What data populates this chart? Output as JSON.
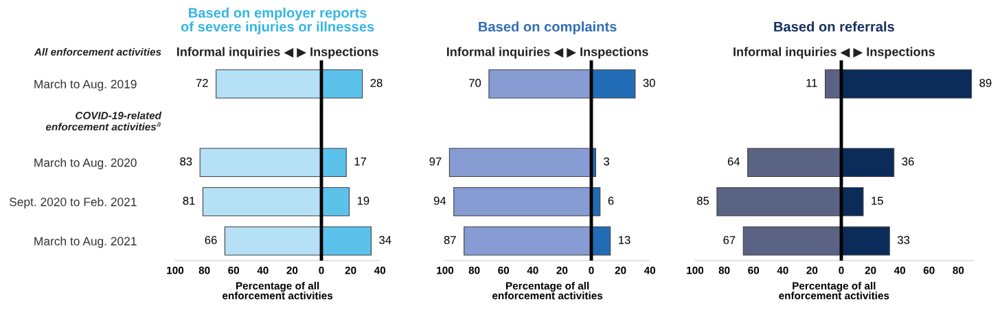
{
  "chart_data": [
    {
      "type": "bar",
      "orientation": "horizontal",
      "title": "Based on employer reports\nof severe injuries or illnesses",
      "subtitle": "Informal inquiries ◀ ▶ Inspections",
      "xlabel": "Percentage of all\nenforcement activities",
      "categories": [
        "March to Aug. 2019",
        null,
        "March to Aug. 2020",
        "Sept. 2020 to Feb. 2021",
        "March to Aug. 2021"
      ],
      "annotations": [
        "All enforcement activities",
        "COVID-19-related\nenforcement activities$^{a}$"
      ],
      "series": [
        {
          "color": "#b5e0f6",
          "base": [
            -72,
            null,
            -83,
            -81,
            -66
          ],
          "values": [
            72,
            null,
            83,
            81,
            66
          ],
          "value_labels": [
            "72",
            null,
            "83",
            "81",
            "66"
          ]
        },
        {
          "color": "#5cc2ec",
          "values": [
            28,
            null,
            17,
            19,
            34
          ],
          "value_labels": [
            "28",
            null,
            "17",
            "19",
            "34"
          ]
        }
      ],
      "xlim": [
        -100,
        40
      ],
      "xticks": [
        {
          "value": -100,
          "label": "100"
        },
        {
          "value": -80,
          "label": "80"
        },
        {
          "value": -60,
          "label": "60"
        },
        {
          "value": -40,
          "label": "40"
        },
        {
          "value": -20,
          "label": "20"
        },
        0,
        20,
        40
      ],
      "ref_lines": [
        {
          "axis": "x",
          "value": 0,
          "color": "#000000"
        }
      ]
    },
    {
      "type": "bar",
      "orientation": "horizontal",
      "title": "Based on complaints",
      "subtitle": "Informal inquiries ◀ ▶ Inspections",
      "xlabel": "Percentage of all\nenforcement activities",
      "series": [
        {
          "color": "#879cd3",
          "base": [
            -70,
            null,
            -97,
            -94,
            -87
          ],
          "values": [
            70,
            null,
            97,
            94,
            87
          ],
          "value_labels": [
            "70",
            null,
            "97",
            "94",
            "87"
          ]
        },
        {
          "color": "#226cb6",
          "values": [
            30,
            null,
            3,
            6,
            13
          ],
          "value_labels": [
            "30",
            null,
            "3",
            "6",
            "13"
          ]
        }
      ],
      "xlim": [
        -100,
        40
      ],
      "xticks": [
        {
          "value": -100,
          "label": "100"
        },
        {
          "value": -80,
          "label": "80"
        },
        {
          "value": -60,
          "label": "60"
        },
        {
          "value": -40,
          "label": "40"
        },
        {
          "value": -20,
          "label": "20"
        },
        0,
        20,
        40
      ],
      "ref_lines": [
        {
          "axis": "x",
          "value": 0,
          "color": "#000000"
        }
      ]
    },
    {
      "type": "bar",
      "orientation": "horizontal",
      "title": "Based on referrals",
      "subtitle": "Informal inquiries ◀ ▶ Inspections",
      "xlabel": "Percentage of all\nenforcement activities",
      "series": [
        {
          "color": "#5b6384",
          "base": [
            -11,
            null,
            -64,
            -85,
            -67
          ],
          "values": [
            11,
            null,
            64,
            85,
            67
          ],
          "value_labels": [
            "11",
            null,
            "64",
            "85",
            "67"
          ]
        },
        {
          "color": "#0b2c59",
          "values": [
            89,
            null,
            36,
            15,
            33
          ],
          "value_labels": [
            "89",
            null,
            "36",
            "15",
            "33"
          ]
        }
      ],
      "xlim": [
        -100,
        90
      ],
      "xticks": [
        {
          "value": -100,
          "label": "100"
        },
        {
          "value": -80,
          "label": "80"
        },
        {
          "value": -60,
          "label": "60"
        },
        {
          "value": -40,
          "label": "40"
        },
        {
          "value": -20,
          "label": "20"
        },
        0,
        20,
        40,
        60,
        80
      ],
      "ref_lines": [
        {
          "axis": "x",
          "value": 0,
          "color": "#000000"
        }
      ]
    }
  ]
}
